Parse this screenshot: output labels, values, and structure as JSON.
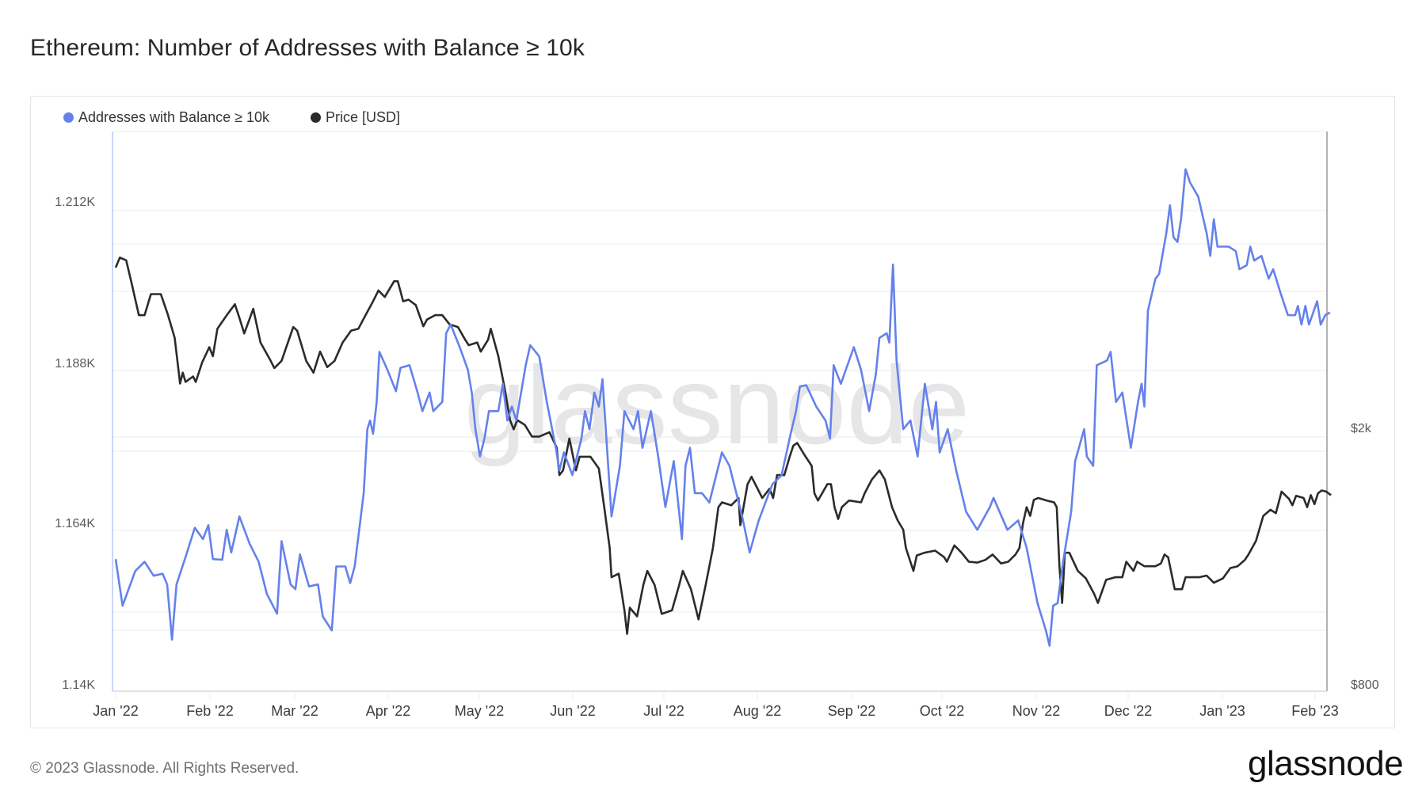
{
  "header": {
    "title": "Ethereum: Number of Addresses with Balance ≥ 10k"
  },
  "legend": {
    "items": [
      {
        "label": "Addresses with Balance ≥ 10k",
        "color": "#6581ec"
      },
      {
        "label": "Price [USD]",
        "color": "#2b2b2b"
      }
    ]
  },
  "axes": {
    "left_ticks": [
      "1.212K",
      "1.188K",
      "1.164K",
      "1.14K"
    ],
    "right_ticks": [
      "$2k",
      "$800"
    ],
    "x_ticks": [
      "Jan '22",
      "Feb '22",
      "Mar '22",
      "Apr '22",
      "May '22",
      "Jun '22",
      "Jul '22",
      "Aug '22",
      "Sep '22",
      "Oct '22",
      "Nov '22",
      "Dec '22",
      "Jan '23",
      "Feb '23"
    ]
  },
  "watermark": "glassnode",
  "footer": {
    "copyright": "© 2023 Glassnode. All Rights Reserved.",
    "logo": "glassnode"
  },
  "colors": {
    "addresses_line": "#6581ec",
    "price_line": "#2b2b2b",
    "grid": "#efeff1",
    "left_axis": "#b8c5f5",
    "right_axis": "#9a9a9f"
  },
  "chart_data": {
    "type": "line",
    "title": "Ethereum: Number of Addresses with Balance ≥ 10k",
    "xlabel": "",
    "ylabel": "Addresses with Balance ≥ 10k",
    "y2label": "Price [USD]",
    "x_unit": "days since 2022-01-01",
    "x_range": [
      "Jan '22",
      "Feb '23"
    ],
    "ylim": [
      1140,
      1224
    ],
    "y2lim": [
      800,
      4000
    ],
    "y2_scale": "log",
    "grid": true,
    "legend_position": "top-left",
    "series": [
      {
        "name": "Addresses with Balance ≥ 10k",
        "axis": "left",
        "x": [
          0,
          2.3,
          6.5,
          9.6,
          12.6,
          15.6,
          17.1,
          18.7,
          20.2,
          23.2,
          26.3,
          29.0,
          30.8,
          32.3,
          35.4,
          36.9,
          38.4,
          41.1,
          44.5,
          47.5,
          50.2,
          53.6,
          55.1,
          58.1,
          59.7,
          61.2,
          64.2,
          67.2,
          68.8,
          71.8,
          73.3,
          76.3,
          77.9,
          79.4,
          80.9,
          82.4,
          83.6,
          84.5,
          85.5,
          86.7,
          87.6,
          90.3,
          93.1,
          94.6,
          97.6,
          100.3,
          101.9,
          104.3,
          105.5,
          108.5,
          109.8,
          111.3,
          114.3,
          117.0,
          118.3,
          119.5,
          121.0,
          122.5,
          124.0,
          127.1,
          128.6,
          130.1,
          131.6,
          133.1,
          136.2,
          137.7,
          140.7,
          143.2,
          146.2,
          147.4,
          148.9,
          151.7,
          154.7,
          155.9,
          157.4,
          159.0,
          160.5,
          161.7,
          163.2,
          164.7,
          167.5,
          169.0,
          172.0,
          173.5,
          175.0,
          177.8,
          180.2,
          182.6,
          185.4,
          188.1,
          189.3,
          190.8,
          192.4,
          194.8,
          197.2,
          201.4,
          203.9,
          208.1,
          210.6,
          213.6,
          218.1,
          221.2,
          224.2,
          226.0,
          227.3,
          229.4,
          232.7,
          235.8,
          237.3,
          238.5,
          240.9,
          245.2,
          247.6,
          250.3,
          252.5,
          253.7,
          256.1,
          257.0,
          258.2,
          259.4,
          261.6,
          264.0,
          266.4,
          268.8,
          271.3,
          272.5,
          273.7,
          276.4,
          279.2,
          282.5,
          286.2,
          290.4,
          291.6,
          296.2,
          299.8,
          302.6,
          306.2,
          309.0,
          310.2,
          311.4,
          312.9,
          314.7,
          317.4,
          318.7,
          321.7,
          322.6,
          324.7,
          325.9,
          329.3,
          330.5,
          332.3,
          334.4,
          337.2,
          339.6,
          340.8,
          341.7,
          342.9,
          345.4,
          346.6,
          349.0,
          350.2,
          351.4,
          352.7,
          353.9,
          355.4,
          356.9,
          359.6,
          362.4,
          363.6,
          364.8,
          366.0,
          369.7,
          372.1,
          373.3,
          375.7,
          376.9,
          378.2,
          380.6,
          383.0,
          384.5,
          386.9,
          389.4,
          391.8,
          392.7,
          393.9,
          395.2,
          396.4,
          399.1,
          400.3,
          401.8,
          403.4
        ],
        "values": [
          1159.7,
          1152.7,
          1157.9,
          1159.3,
          1157.2,
          1157.5,
          1155.9,
          1147.6,
          1155.9,
          1160.0,
          1164.4,
          1162.7,
          1164.8,
          1159.7,
          1159.6,
          1164.1,
          1160.7,
          1166.1,
          1162.0,
          1159.3,
          1154.5,
          1151.5,
          1162.4,
          1155.9,
          1155.2,
          1160.4,
          1155.6,
          1155.9,
          1151.1,
          1149.0,
          1158.6,
          1158.6,
          1156.1,
          1158.6,
          1164.1,
          1169.6,
          1179.2,
          1180.5,
          1178.5,
          1183.3,
          1190.8,
          1188.1,
          1184.9,
          1188.4,
          1188.8,
          1184.7,
          1181.9,
          1184.7,
          1181.9,
          1183.3,
          1193.6,
          1194.9,
          1191.5,
          1188.1,
          1184.7,
          1179.2,
          1175.1,
          1177.8,
          1181.9,
          1181.9,
          1186.0,
          1180.5,
          1182.6,
          1180.5,
          1188.8,
          1191.8,
          1190.1,
          1183.3,
          1176.4,
          1173.0,
          1175.7,
          1172.3,
          1177.8,
          1181.9,
          1179.2,
          1184.7,
          1182.6,
          1186.7,
          1176.4,
          1166.1,
          1173.7,
          1181.9,
          1179.2,
          1181.9,
          1176.4,
          1181.9,
          1175.1,
          1167.5,
          1174.4,
          1162.7,
          1173.7,
          1176.4,
          1169.6,
          1169.6,
          1168.2,
          1175.7,
          1173.7,
          1166.1,
          1160.7,
          1165.5,
          1170.9,
          1172.3,
          1178.5,
          1181.9,
          1185.6,
          1185.8,
          1182.6,
          1180.5,
          1177.8,
          1188.8,
          1186.0,
          1191.5,
          1188.1,
          1181.9,
          1187.4,
          1192.9,
          1193.6,
          1192.2,
          1203.9,
          1189.5,
          1179.2,
          1180.5,
          1175.1,
          1186.0,
          1179.2,
          1183.3,
          1175.7,
          1179.2,
          1173.0,
          1166.8,
          1164.1,
          1167.5,
          1168.9,
          1164.1,
          1165.5,
          1161.4,
          1153.1,
          1149.0,
          1146.7,
          1152.7,
          1153.1,
          1159.3,
          1166.8,
          1174.4,
          1179.2,
          1175.1,
          1173.7,
          1188.8,
          1189.5,
          1190.8,
          1183.3,
          1184.7,
          1176.4,
          1183.3,
          1186.0,
          1182.6,
          1197.0,
          1201.8,
          1202.5,
          1208.6,
          1212.8,
          1208.0,
          1207.3,
          1210.7,
          1218.2,
          1216.2,
          1214.1,
          1208.6,
          1205.2,
          1210.7,
          1206.6,
          1206.6,
          1205.9,
          1203.2,
          1203.8,
          1206.6,
          1204.5,
          1205.2,
          1201.8,
          1203.2,
          1199.7,
          1196.3,
          1196.3,
          1197.7,
          1194.9,
          1197.7,
          1194.9,
          1198.4,
          1194.9,
          1196.3,
          1196.7
        ]
      },
      {
        "name": "Price [USD]",
        "axis": "right",
        "x": [
          0,
          1.4,
          3.5,
          5.3,
          7.7,
          9.6,
          11.7,
          15.0,
          17.4,
          19.6,
          21.4,
          22.3,
          23.2,
          25.7,
          26.6,
          28.7,
          31.1,
          32.3,
          33.8,
          36.9,
          39.6,
          41.1,
          42.7,
          45.7,
          48.1,
          51.5,
          52.7,
          55.1,
          59.0,
          60.3,
          63.3,
          65.7,
          67.9,
          70.3,
          72.7,
          75.4,
          78.2,
          80.6,
          83.0,
          85.5,
          87.3,
          89.4,
          92.5,
          93.7,
          95.5,
          97.3,
          99.7,
          102.2,
          103.4,
          106.1,
          108.5,
          110.9,
          113.7,
          116.1,
          117.3,
          120.1,
          121.3,
          123.7,
          124.6,
          127.1,
          129.2,
          131.0,
          132.2,
          133.4,
          135.9,
          138.3,
          140.7,
          144.1,
          146.5,
          147.4,
          148.6,
          150.7,
          152.9,
          154.1,
          157.7,
          160.5,
          162.3,
          164.1,
          164.7,
          167.1,
          169.0,
          169.9,
          170.8,
          173.2,
          175.3,
          176.6,
          179.0,
          181.4,
          184.8,
          187.2,
          188.4,
          191.1,
          193.6,
          196.0,
          198.4,
          200.2,
          201.4,
          204.5,
          206.9,
          207.5,
          209.9,
          211.2,
          214.8,
          217.2,
          218.4,
          219.7,
          222.1,
          223.9,
          225.1,
          226.4,
          228.8,
          231.2,
          232.1,
          233.3,
          236.4,
          237.6,
          238.8,
          240.0,
          241.2,
          243.6,
          247.6,
          248.8,
          251.2,
          253.7,
          255.5,
          257.9,
          259.8,
          261.6,
          262.5,
          265.0,
          266.1,
          268.6,
          272.2,
          275.2,
          276.1,
          278.6,
          281.0,
          283.4,
          286.2,
          288.9,
          291.3,
          294.1,
          296.5,
          298.9,
          300.2,
          301.4,
          302.6,
          303.8,
          305.0,
          306.5,
          309.3,
          311.7,
          312.6,
          313.5,
          314.4,
          315.3,
          316.8,
          319.6,
          322.3,
          325.0,
          326.3,
          329.0,
          332.0,
          334.4,
          335.7,
          338.1,
          339.3,
          341.7,
          345.4,
          347.2,
          348.4,
          349.6,
          351.8,
          354.2,
          355.4,
          359.9,
          362.4,
          364.8,
          367.8,
          370.3,
          372.7,
          375.1,
          376.3,
          378.8,
          381.2,
          383.6,
          385.4,
          387.3,
          389.7,
          390.9,
          392.1,
          394.6,
          395.8,
          397.0,
          398.2,
          399.4,
          400.6,
          402.1,
          403.7
        ],
        "values": [
          3540,
          3667,
          3632,
          3352,
          2994,
          2994,
          3225,
          3225,
          2994,
          2764,
          2354,
          2446,
          2368,
          2414,
          2368,
          2534,
          2676,
          2592,
          2854,
          2994,
          3112,
          2966,
          2808,
          3062,
          2720,
          2550,
          2486,
          2550,
          2872,
          2836,
          2550,
          2446,
          2634,
          2494,
          2550,
          2720,
          2836,
          2854,
          2994,
          3144,
          3266,
          3192,
          3374,
          3374,
          3144,
          3162,
          3102,
          2880,
          2948,
          2994,
          2994,
          2900,
          2872,
          2746,
          2694,
          2720,
          2634,
          2746,
          2854,
          2592,
          2316,
          2070,
          2004,
          2070,
          2036,
          1954,
          1954,
          1984,
          1879,
          1706,
          1734,
          1940,
          1734,
          1820,
          1820,
          1746,
          1524,
          1320,
          1191,
          1206,
          1060,
          976,
          1070,
          1038,
          1160,
          1218,
          1160,
          1047,
          1060,
          1160,
          1218,
          1142,
          1027,
          1160,
          1320,
          1524,
          1550,
          1534,
          1574,
          1430,
          1652,
          1696,
          1574,
          1626,
          1574,
          1706,
          1706,
          1820,
          1892,
          1910,
          1832,
          1762,
          1600,
          1560,
          1652,
          1652,
          1524,
          1462,
          1524,
          1560,
          1550,
          1600,
          1680,
          1734,
          1680,
          1524,
          1454,
          1408,
          1320,
          1218,
          1286,
          1298,
          1308,
          1278,
          1258,
          1332,
          1298,
          1258,
          1254,
          1266,
          1290,
          1250,
          1258,
          1290,
          1320,
          1440,
          1524,
          1478,
          1564,
          1574,
          1560,
          1550,
          1524,
          1238,
          1088,
          1298,
          1298,
          1218,
          1186,
          1124,
          1088,
          1180,
          1191,
          1191,
          1258,
          1218,
          1258,
          1238,
          1238,
          1250,
          1290,
          1278,
          1142,
          1142,
          1191,
          1191,
          1198,
          1168,
          1186,
          1230,
          1238,
          1266,
          1290,
          1354,
          1478,
          1510,
          1492,
          1610,
          1570,
          1534,
          1586,
          1574,
          1524,
          1590,
          1540,
          1600,
          1616,
          1610,
          1590
        ]
      }
    ]
  }
}
